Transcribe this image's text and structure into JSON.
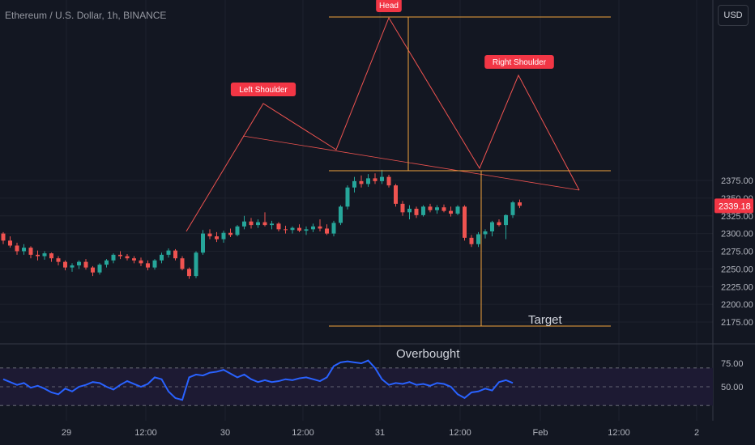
{
  "header": {
    "title": "Ethereum / U.S. Dollar, 1h, BINANCE",
    "currency_button": "USD"
  },
  "colors": {
    "background": "#131722",
    "up": "#26a69a",
    "down": "#ef5350",
    "pattern_line": "#ef5350",
    "level_line": "#f0a33c",
    "rsi_line": "#2962ff",
    "label_bg": "#f23645"
  },
  "chart_data": [
    {
      "type": "candlestick",
      "title": "Ethereum / U.S. Dollar, 1h, BINANCE",
      "y_axis_ticks": [
        2175,
        2200,
        2225,
        2250,
        2275,
        2300,
        2325,
        2350,
        2375
      ],
      "y_axis_labels": [
        "2175.00",
        "2200.00",
        "2225.00",
        "2250.00",
        "2275.00",
        "2300.00",
        "2325.00",
        "2350.00",
        "2375.00"
      ],
      "ylim": [
        2162,
        2392
      ],
      "x_axis_labels": [
        "29",
        "12:00",
        "30",
        "12:00",
        "31",
        "12:00",
        "Feb",
        "12:00",
        "2"
      ],
      "last_price": "2339.18",
      "candles_ohlc": [
        [
          2300,
          2302,
          2285,
          2290
        ],
        [
          2290,
          2296,
          2280,
          2283
        ],
        [
          2283,
          2287,
          2270,
          2275
        ],
        [
          2275,
          2285,
          2270,
          2280
        ],
        [
          2280,
          2282,
          2265,
          2270
        ],
        [
          2270,
          2276,
          2262,
          2268
        ],
        [
          2268,
          2275,
          2263,
          2272
        ],
        [
          2272,
          2273,
          2260,
          2265
        ],
        [
          2265,
          2268,
          2255,
          2260
        ],
        [
          2260,
          2262,
          2248,
          2252
        ],
        [
          2252,
          2258,
          2246,
          2255
        ],
        [
          2255,
          2262,
          2250,
          2260
        ],
        [
          2260,
          2264,
          2249,
          2252
        ],
        [
          2252,
          2254,
          2240,
          2245
        ],
        [
          2245,
          2258,
          2242,
          2256
        ],
        [
          2256,
          2264,
          2252,
          2262
        ],
        [
          2262,
          2272,
          2258,
          2270
        ],
        [
          2270,
          2275,
          2264,
          2268
        ],
        [
          2268,
          2271,
          2262,
          2265
        ],
        [
          2265,
          2268,
          2258,
          2262
        ],
        [
          2262,
          2266,
          2254,
          2258
        ],
        [
          2258,
          2262,
          2248,
          2252
        ],
        [
          2252,
          2264,
          2249,
          2262
        ],
        [
          2262,
          2273,
          2258,
          2270
        ],
        [
          2270,
          2279,
          2266,
          2276
        ],
        [
          2276,
          2278,
          2262,
          2265
        ],
        [
          2265,
          2268,
          2248,
          2250
        ],
        [
          2250,
          2252,
          2236,
          2240
        ],
        [
          2240,
          2275,
          2237,
          2273
        ],
        [
          2273,
          2305,
          2270,
          2300
        ],
        [
          2300,
          2306,
          2292,
          2296
        ],
        [
          2296,
          2302,
          2288,
          2292
        ],
        [
          2292,
          2304,
          2287,
          2301
        ],
        [
          2301,
          2307,
          2295,
          2298
        ],
        [
          2298,
          2312,
          2296,
          2310
        ],
        [
          2310,
          2325,
          2306,
          2317
        ],
        [
          2317,
          2322,
          2307,
          2312
        ],
        [
          2312,
          2320,
          2308,
          2316
        ],
        [
          2316,
          2330,
          2310,
          2312
        ],
        [
          2312,
          2318,
          2306,
          2314
        ],
        [
          2314,
          2316,
          2303,
          2306
        ],
        [
          2306,
          2311,
          2300,
          2305
        ],
        [
          2305,
          2310,
          2300,
          2308
        ],
        [
          2308,
          2313,
          2302,
          2304
        ],
        [
          2304,
          2310,
          2298,
          2306
        ],
        [
          2306,
          2314,
          2302,
          2310
        ],
        [
          2310,
          2320,
          2303,
          2307
        ],
        [
          2307,
          2313,
          2298,
          2300
        ],
        [
          2300,
          2318,
          2296,
          2315
        ],
        [
          2315,
          2340,
          2312,
          2338
        ],
        [
          2338,
          2368,
          2334,
          2365
        ],
        [
          2365,
          2380,
          2358,
          2374
        ],
        [
          2374,
          2382,
          2365,
          2370
        ],
        [
          2370,
          2384,
          2366,
          2378
        ],
        [
          2378,
          2385,
          2370,
          2374
        ],
        [
          2374,
          2390,
          2370,
          2380
        ],
        [
          2380,
          2383,
          2365,
          2368
        ],
        [
          2368,
          2370,
          2338,
          2342
        ],
        [
          2342,
          2346,
          2325,
          2330
        ],
        [
          2330,
          2340,
          2320,
          2335
        ],
        [
          2335,
          2338,
          2322,
          2326
        ],
        [
          2326,
          2340,
          2324,
          2338
        ],
        [
          2338,
          2342,
          2330,
          2333
        ],
        [
          2333,
          2340,
          2328,
          2337
        ],
        [
          2337,
          2341,
          2330,
          2332
        ],
        [
          2332,
          2338,
          2324,
          2328
        ],
        [
          2328,
          2340,
          2326,
          2338
        ],
        [
          2338,
          2340,
          2290,
          2294
        ],
        [
          2294,
          2298,
          2281,
          2285
        ],
        [
          2285,
          2302,
          2281,
          2299
        ],
        [
          2299,
          2306,
          2293,
          2303
        ],
        [
          2303,
          2318,
          2296,
          2316
        ],
        [
          2316,
          2320,
          2310,
          2312
        ],
        [
          2312,
          2327,
          2292,
          2326
        ],
        [
          2326,
          2346,
          2322,
          2344
        ],
        [
          2344,
          2348,
          2336,
          2339.18
        ]
      ],
      "annotations": [
        "Left Shoulder",
        "Head",
        "Right Shoulder",
        "Target"
      ]
    },
    {
      "type": "line",
      "title": "",
      "annotation": "Overbought",
      "y_axis_labels": [
        "75.00",
        "50.00"
      ],
      "ylim": [
        20,
        80
      ],
      "levels": [
        70,
        50,
        30
      ],
      "values": [
        58,
        55,
        52,
        54,
        49,
        51,
        48,
        44,
        42,
        48,
        45,
        50,
        52,
        55,
        54,
        50,
        47,
        52,
        56,
        53,
        50,
        53,
        60,
        58,
        45,
        38,
        36,
        60,
        63,
        62,
        65,
        66,
        68,
        64,
        60,
        63,
        58,
        55,
        57,
        55,
        56,
        58,
        57,
        59,
        60,
        58,
        56,
        60,
        72,
        76,
        77,
        76,
        75,
        78,
        70,
        58,
        52,
        54,
        53,
        55,
        52,
        53,
        51,
        54,
        53,
        50,
        42,
        38,
        44,
        45,
        48,
        46,
        55,
        57,
        54
      ]
    }
  ]
}
